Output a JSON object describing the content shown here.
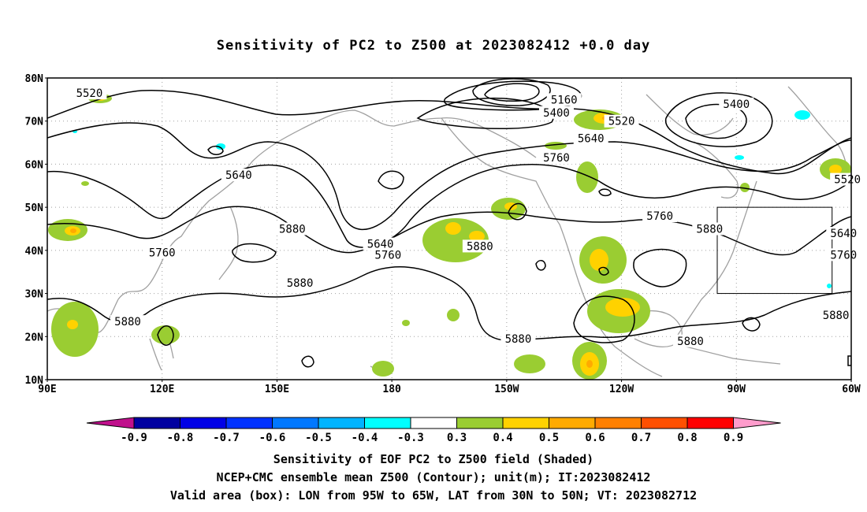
{
  "title": "Sensitivity of PC2 to Z500 at 2023082412 +0.0 day",
  "map": {
    "lat_labels": [
      "80N",
      "70N",
      "60N",
      "50N",
      "40N",
      "30N",
      "20N",
      "10N"
    ],
    "lon_labels": [
      "90E",
      "120E",
      "150E",
      "180",
      "150W",
      "120W",
      "90W",
      "60W"
    ],
    "contour_levels_m": [
      5160,
      5400,
      5520,
      5640,
      5760,
      5880
    ],
    "contour_labels": [
      {
        "text": "5520",
        "lon": 101,
        "lat": 76.5
      },
      {
        "text": "5160",
        "lon": -135,
        "lat": 75
      },
      {
        "text": "5400",
        "lon": -137,
        "lat": 72
      },
      {
        "text": "5520",
        "lon": -120,
        "lat": 70
      },
      {
        "text": "5400",
        "lon": -90,
        "lat": 74
      },
      {
        "text": "5640",
        "lon": -128,
        "lat": 66
      },
      {
        "text": "5760",
        "lon": -137,
        "lat": 61.5
      },
      {
        "text": "5640",
        "lon": 140,
        "lat": 57.5
      },
      {
        "text": "5520",
        "lon": -61,
        "lat": 56.5
      },
      {
        "text": "5880",
        "lon": 154,
        "lat": 45
      },
      {
        "text": "5760",
        "lon": -110,
        "lat": 48
      },
      {
        "text": "5880",
        "lon": -97,
        "lat": 45
      },
      {
        "text": "5640",
        "lon": -62,
        "lat": 44
      },
      {
        "text": "5640",
        "lon": 177,
        "lat": 41.5
      },
      {
        "text": "5760",
        "lon": 179,
        "lat": 39
      },
      {
        "text": "5880",
        "lon": -157,
        "lat": 41
      },
      {
        "text": "5760",
        "lon": 120,
        "lat": 39.5
      },
      {
        "text": "5760",
        "lon": -62,
        "lat": 39
      },
      {
        "text": "5880",
        "lon": 156,
        "lat": 32.5
      },
      {
        "text": "5880",
        "lon": 111,
        "lat": 23.5
      },
      {
        "text": "5880",
        "lon": -64,
        "lat": 25
      },
      {
        "text": "5880",
        "lon": -147,
        "lat": 19.5
      },
      {
        "text": "5880",
        "lon": -102,
        "lat": 19
      }
    ],
    "valid_box": {
      "lon_w": -95,
      "lon_e": -65,
      "lat_s": 30,
      "lat_n": 50
    },
    "colors": {
      "contour": "#000000",
      "coast": "#a0a0a0",
      "grid": "#a0a0a0"
    }
  },
  "colorbar": {
    "labels": [
      "-0.9",
      "-0.8",
      "-0.7",
      "-0.6",
      "-0.5",
      "-0.4",
      "-0.3",
      "0.3",
      "0.4",
      "0.5",
      "0.6",
      "0.7",
      "0.8",
      "0.9"
    ],
    "low_arrow_color": "#c0108c",
    "colors": [
      "#0000a0",
      "#0000e6",
      "#0032ff",
      "#0078ff",
      "#00b4ff",
      "#00ffff",
      "#ffffff",
      "#9acd32",
      "#ffd200",
      "#ffaa00",
      "#ff8000",
      "#ff5000",
      "#ff0000"
    ],
    "high_arrow_color": "#ff9ccc"
  },
  "caption": {
    "line1": "Sensitivity of EOF PC2 to Z500 field (Shaded)",
    "line2": "NCEP+CMC ensemble mean Z500 (Contour); unit(m); IT:2023082412",
    "line3": "Valid area (box): LON from 95W to 65W, LAT from 30N to 50N; VT: 2023082712"
  }
}
